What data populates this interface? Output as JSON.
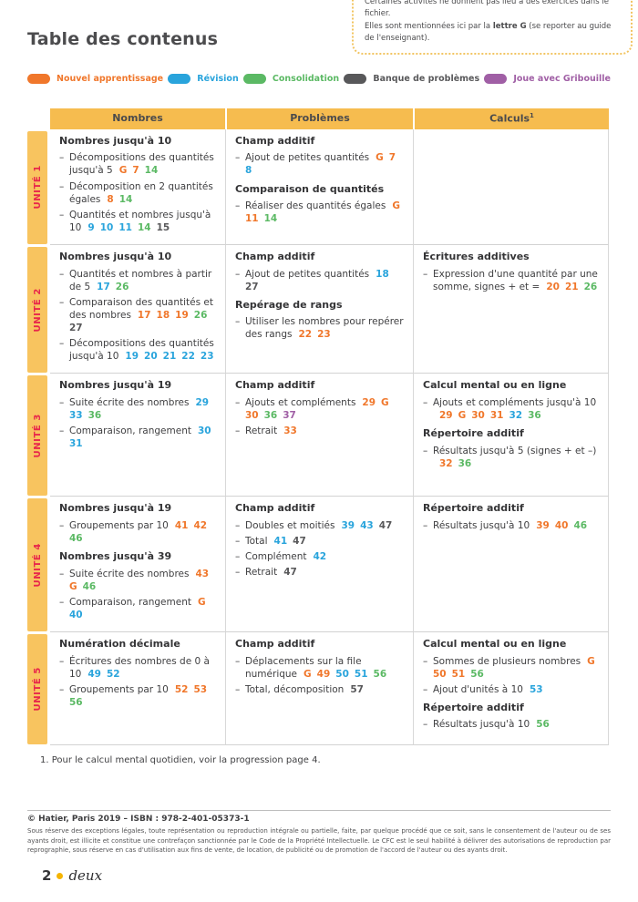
{
  "title": "Table des contenus",
  "note": {
    "line1": "Certaines activités ne donnent pas lieu à des exercices dans le fichier.",
    "line2_pre": "Elles sont mentionnées ici par la ",
    "line2_bold": "lettre G",
    "line2_post": " (se reporter au guide de l'enseignant)."
  },
  "colors": {
    "new": "#f0772b",
    "rev": "#29a4dc",
    "cons": "#5bb964",
    "bank": "#58585a",
    "grib": "#a05fa5",
    "header_band": "#f6bc4f",
    "unit_band": "#f8c45f",
    "unit_text": "#e8274b"
  },
  "legend": {
    "items": [
      {
        "key": "new",
        "label": "Nouvel apprentissage"
      },
      {
        "key": "rev",
        "label": "Révision"
      },
      {
        "key": "cons",
        "label": "Consolidation"
      },
      {
        "key": "bank",
        "label": "Banque de problèmes"
      },
      {
        "key": "grib",
        "label": "Joue avec Gribouille"
      }
    ]
  },
  "table": {
    "headers": [
      {
        "label": "Nombres",
        "sup": ""
      },
      {
        "label": "Problèmes",
        "sup": ""
      },
      {
        "label": "Calculs",
        "sup": "1"
      }
    ],
    "column_keys": [
      "nombres",
      "problemes",
      "calculs"
    ],
    "units": [
      {
        "label": "UNITÉ 1",
        "cells": [
          [
            {
              "type": "h",
              "text": "Nombres jusqu'à 10"
            },
            {
              "type": "i",
              "text": "Décompositions des quantités jusqu'à 5",
              "refs": [
                {
                  "n": "G",
                  "k": "new"
                },
                {
                  "n": "7",
                  "k": "new"
                },
                {
                  "n": "14",
                  "k": "cons"
                }
              ]
            },
            {
              "type": "i",
              "text": "Décomposition en 2 quantités égales",
              "refs": [
                {
                  "n": "8",
                  "k": "new"
                },
                {
                  "n": "14",
                  "k": "cons"
                }
              ]
            },
            {
              "type": "i",
              "text": "Quantités et nombres jusqu'à 10",
              "refs": [
                {
                  "n": "9",
                  "k": "rev"
                },
                {
                  "n": "10",
                  "k": "rev"
                },
                {
                  "n": "11",
                  "k": "rev"
                },
                {
                  "n": "14",
                  "k": "cons"
                },
                {
                  "n": "15",
                  "k": "bank"
                }
              ]
            }
          ],
          [
            {
              "type": "h",
              "text": "Champ additif"
            },
            {
              "type": "i",
              "text": "Ajout de petites quantités",
              "refs": [
                {
                  "n": "G",
                  "k": "new"
                },
                {
                  "n": "7",
                  "k": "new"
                },
                {
                  "n": "8",
                  "k": "rev"
                }
              ]
            },
            {
              "type": "h",
              "text": "Comparaison de quantités"
            },
            {
              "type": "i",
              "text": "Réaliser des quantités égales",
              "refs": [
                {
                  "n": "G",
                  "k": "new"
                },
                {
                  "n": "11",
                  "k": "new"
                },
                {
                  "n": "14",
                  "k": "cons"
                }
              ]
            }
          ],
          []
        ]
      },
      {
        "label": "UNITÉ 2",
        "cells": [
          [
            {
              "type": "h",
              "text": "Nombres jusqu'à 10"
            },
            {
              "type": "i",
              "text": "Quantités et nombres à partir de 5",
              "refs": [
                {
                  "n": "17",
                  "k": "rev"
                },
                {
                  "n": "26",
                  "k": "cons"
                }
              ]
            },
            {
              "type": "i",
              "text": "Comparaison des quantités et des nombres",
              "refs": [
                {
                  "n": "17",
                  "k": "new"
                },
                {
                  "n": "18",
                  "k": "new"
                },
                {
                  "n": "19",
                  "k": "new"
                },
                {
                  "n": "26",
                  "k": "cons"
                },
                {
                  "n": "27",
                  "k": "bank"
                }
              ]
            },
            {
              "type": "i",
              "text": "Décompositions des quantités jusqu'à 10",
              "refs": [
                {
                  "n": "19",
                  "k": "rev"
                },
                {
                  "n": "20",
                  "k": "rev"
                },
                {
                  "n": "21",
                  "k": "rev"
                },
                {
                  "n": "22",
                  "k": "rev"
                },
                {
                  "n": "23",
                  "k": "rev"
                }
              ]
            }
          ],
          [
            {
              "type": "h",
              "text": "Champ additif"
            },
            {
              "type": "i",
              "text": "Ajout de petites quantités",
              "refs": [
                {
                  "n": "18",
                  "k": "rev"
                },
                {
                  "n": "27",
                  "k": "bank"
                }
              ]
            },
            {
              "type": "h",
              "text": "Repérage de rangs"
            },
            {
              "type": "i",
              "text": "Utiliser les nombres pour repérer des rangs",
              "refs": [
                {
                  "n": "22",
                  "k": "new"
                },
                {
                  "n": "23",
                  "k": "new"
                }
              ]
            }
          ],
          [
            {
              "type": "h",
              "text": "Écritures additives"
            },
            {
              "type": "i",
              "text": "Expression d'une quantité par une somme, signes + et =",
              "refs": [
                {
                  "n": "20",
                  "k": "new"
                },
                {
                  "n": "21",
                  "k": "new"
                },
                {
                  "n": "26",
                  "k": "cons"
                }
              ]
            }
          ]
        ]
      },
      {
        "label": "UNITÉ 3",
        "cells": [
          [
            {
              "type": "h",
              "text": "Nombres jusqu'à 19"
            },
            {
              "type": "i",
              "text": "Suite écrite des nombres",
              "refs": [
                {
                  "n": "29",
                  "k": "rev"
                },
                {
                  "n": "33",
                  "k": "rev"
                },
                {
                  "n": "36",
                  "k": "cons"
                }
              ]
            },
            {
              "type": "i",
              "text": "Comparaison, rangement",
              "refs": [
                {
                  "n": "30",
                  "k": "rev"
                },
                {
                  "n": "31",
                  "k": "rev"
                }
              ]
            }
          ],
          [
            {
              "type": "h",
              "text": "Champ additif"
            },
            {
              "type": "i",
              "text": "Ajouts et compléments",
              "refs": [
                {
                  "n": "29",
                  "k": "new"
                },
                {
                  "n": "G",
                  "k": "new"
                },
                {
                  "n": "30",
                  "k": "new"
                },
                {
                  "n": "36",
                  "k": "cons"
                },
                {
                  "n": "37",
                  "k": "grib"
                }
              ]
            },
            {
              "type": "i",
              "text": "Retrait",
              "refs": [
                {
                  "n": "33",
                  "k": "new"
                }
              ]
            }
          ],
          [
            {
              "type": "h",
              "text": "Calcul mental ou en ligne"
            },
            {
              "type": "i",
              "text": "Ajouts et compléments jusqu'à 10",
              "refs": [
                {
                  "n": "29",
                  "k": "new"
                },
                {
                  "n": "G",
                  "k": "new"
                },
                {
                  "n": "30",
                  "k": "new"
                },
                {
                  "n": "31",
                  "k": "new"
                },
                {
                  "n": "32",
                  "k": "rev"
                },
                {
                  "n": "36",
                  "k": "cons"
                }
              ]
            },
            {
              "type": "h",
              "text": "Répertoire additif"
            },
            {
              "type": "i",
              "text": "Résultats jusqu'à 5 (signes + et –)",
              "refs": [
                {
                  "n": "32",
                  "k": "new"
                },
                {
                  "n": "36",
                  "k": "cons"
                }
              ]
            }
          ]
        ]
      },
      {
        "label": "UNITÉ 4",
        "cells": [
          [
            {
              "type": "h",
              "text": "Nombres jusqu'à 19"
            },
            {
              "type": "i",
              "text": "Groupements par 10",
              "refs": [
                {
                  "n": "41",
                  "k": "new"
                },
                {
                  "n": "42",
                  "k": "new"
                },
                {
                  "n": "46",
                  "k": "cons"
                }
              ]
            },
            {
              "type": "h",
              "text": "Nombres jusqu'à 39"
            },
            {
              "type": "i",
              "text": "Suite écrite des nombres",
              "refs": [
                {
                  "n": "43",
                  "k": "new"
                },
                {
                  "n": "G",
                  "k": "new"
                },
                {
                  "n": "46",
                  "k": "cons"
                }
              ]
            },
            {
              "type": "i",
              "text": "Comparaison, rangement",
              "refs": [
                {
                  "n": "G",
                  "k": "new"
                },
                {
                  "n": "40",
                  "k": "rev"
                }
              ]
            }
          ],
          [
            {
              "type": "h",
              "text": "Champ additif"
            },
            {
              "type": "i",
              "text": "Doubles et moitiés",
              "refs": [
                {
                  "n": "39",
                  "k": "rev"
                },
                {
                  "n": "43",
                  "k": "rev"
                },
                {
                  "n": "47",
                  "k": "bank"
                }
              ]
            },
            {
              "type": "i",
              "text": "Total",
              "refs": [
                {
                  "n": "41",
                  "k": "rev"
                },
                {
                  "n": "47",
                  "k": "bank"
                }
              ]
            },
            {
              "type": "i",
              "text": "Complément",
              "refs": [
                {
                  "n": "42",
                  "k": "rev"
                }
              ]
            },
            {
              "type": "i",
              "text": "Retrait",
              "refs": [
                {
                  "n": "47",
                  "k": "bank"
                }
              ]
            }
          ],
          [
            {
              "type": "h",
              "text": "Répertoire additif"
            },
            {
              "type": "i",
              "text": "Résultats jusqu'à 10",
              "refs": [
                {
                  "n": "39",
                  "k": "new"
                },
                {
                  "n": "40",
                  "k": "new"
                },
                {
                  "n": "46",
                  "k": "cons"
                }
              ]
            }
          ]
        ]
      },
      {
        "label": "UNITÉ 5",
        "cells": [
          [
            {
              "type": "h",
              "text": "Numération décimale"
            },
            {
              "type": "i",
              "text": "Écritures des nombres de 0 à 10",
              "refs": [
                {
                  "n": "49",
                  "k": "rev"
                },
                {
                  "n": "52",
                  "k": "rev"
                }
              ]
            },
            {
              "type": "i",
              "text": "Groupements par 10",
              "refs": [
                {
                  "n": "52",
                  "k": "new"
                },
                {
                  "n": "53",
                  "k": "new"
                },
                {
                  "n": "56",
                  "k": "cons"
                }
              ]
            }
          ],
          [
            {
              "type": "h",
              "text": "Champ additif"
            },
            {
              "type": "i",
              "text": "Déplacements sur la file numérique",
              "refs": [
                {
                  "n": "G",
                  "k": "new"
                },
                {
                  "n": "49",
                  "k": "new"
                },
                {
                  "n": "50",
                  "k": "rev"
                },
                {
                  "n": "51",
                  "k": "rev"
                },
                {
                  "n": "56",
                  "k": "cons"
                }
              ]
            },
            {
              "type": "i",
              "text": "Total, décomposition",
              "refs": [
                {
                  "n": "57",
                  "k": "bank"
                }
              ]
            }
          ],
          [
            {
              "type": "h",
              "text": "Calcul mental ou en ligne"
            },
            {
              "type": "i",
              "text": "Sommes de plusieurs nombres",
              "refs": [
                {
                  "n": "G",
                  "k": "new"
                },
                {
                  "n": "50",
                  "k": "new"
                },
                {
                  "n": "51",
                  "k": "new"
                },
                {
                  "n": "56",
                  "k": "cons"
                }
              ]
            },
            {
              "type": "i",
              "text": "Ajout d'unités à 10",
              "refs": [
                {
                  "n": "53",
                  "k": "rev"
                }
              ]
            },
            {
              "type": "h",
              "text": "Répertoire additif"
            },
            {
              "type": "i",
              "text": "Résultats jusqu'à 10",
              "refs": [
                {
                  "n": "56",
                  "k": "cons"
                }
              ]
            }
          ]
        ]
      }
    ]
  },
  "footnote": "1. Pour le calcul mental quotidien, voir la progression page 4.",
  "footer": {
    "copyright": "© Hatier, Paris 2019 – ISBN : 978-2-401-05373-1",
    "legal": "Sous réserve des exceptions légales, toute représentation ou reproduction intégrale ou partielle, faite, par quelque procédé que ce soit, sans le consentement de l'auteur ou de ses ayants droit, est illicite et constitue une contrefaçon sanctionnée par le Code de la Propriété Intellectuelle. Le CFC est le seul habilité à délivrer des autorisations de reproduction par reprographie, sous réserve en cas d'utilisation aux fins de vente, de location, de publicité ou de promotion de l'accord de l'auteur ou des ayants droit.",
    "page_number": "2",
    "page_word": "deux"
  }
}
